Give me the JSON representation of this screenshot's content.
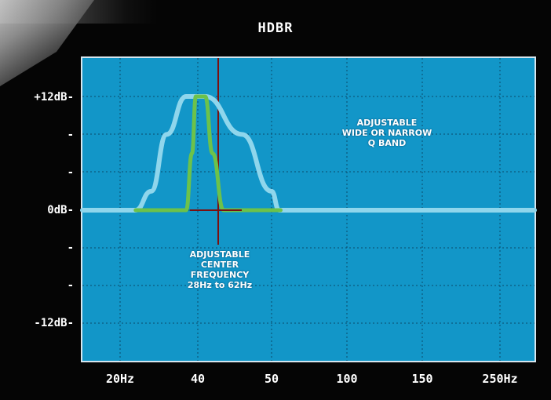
{
  "chart_data": {
    "type": "line",
    "title": "HDBR",
    "x_tick_labels": [
      "20Hz",
      "40",
      "50",
      "100",
      "150",
      "250Hz"
    ],
    "y_tick_labels": [
      "+12dB-",
      "-",
      "-",
      "0dB-",
      "-",
      "-",
      "-12dB-"
    ],
    "ylim": [
      -12,
      12
    ],
    "grid": true,
    "annotations": {
      "q_band": [
        "ADJUSTABLE",
        "WIDE OR NARROW",
        "Q BAND"
      ],
      "center_frequency": [
        "ADJUSTABLE",
        "CENTER",
        "FREQUENCY",
        "28Hz to 62Hz"
      ]
    },
    "series": [
      {
        "color": "#8fd6ec",
        "points": [
          [
            15,
            0
          ],
          [
            24,
            0
          ],
          [
            28,
            2
          ],
          [
            32,
            8
          ],
          [
            37,
            12
          ],
          [
            41,
            12
          ],
          [
            46,
            8
          ],
          [
            50,
            2
          ],
          [
            55,
            0
          ],
          [
            270,
            0
          ]
        ]
      },
      {
        "color": "#6cc24a",
        "points": [
          [
            24,
            0
          ],
          [
            37,
            0
          ],
          [
            38.5,
            6
          ],
          [
            39.5,
            12
          ],
          [
            41,
            12
          ],
          [
            42,
            6
          ],
          [
            43.5,
            0
          ],
          [
            56,
            0
          ]
        ]
      }
    ],
    "center_marker": {
      "x": 40,
      "color": "#7a1010"
    }
  }
}
